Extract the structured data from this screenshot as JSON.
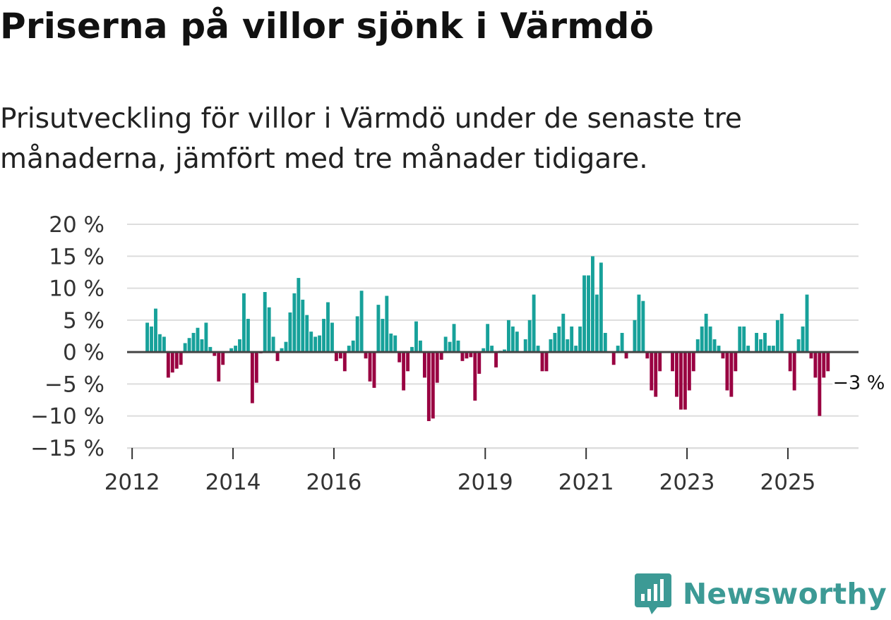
{
  "title": "Priserna på villor sjönk i Värmdö",
  "subtitle": "Prisutveckling för villor i Värmdö under de senaste tre månaderna, jämfört med tre månader tidigare.",
  "brand": {
    "name": "Newsworthy",
    "logo_icon": "bar-chart-speech-bubble-icon"
  },
  "colors": {
    "positive": "#17a19a",
    "negative": "#990041",
    "grid": "#dddddd",
    "zero_line": "#444444",
    "brand": "#3c9a95"
  },
  "chart_data": {
    "type": "bar",
    "title": "Priserna på villor sjönk i Värmdö",
    "ylabel": "",
    "xlabel": "",
    "ylim": [
      -15,
      20
    ],
    "xlim": [
      2011.9,
      2026.4
    ],
    "y_ticks": [
      20,
      15,
      10,
      5,
      0,
      -5,
      -10,
      -15
    ],
    "y_tick_labels": [
      "20 %",
      "15 %",
      "10 %",
      "5 %",
      "0 %",
      "−5 %",
      "−10 %",
      "−15 %"
    ],
    "x_ticks": [
      2012,
      2014,
      2016,
      2019,
      2021,
      2023,
      2025
    ],
    "x_tick_labels": [
      "2012",
      "2014",
      "2016",
      "2019",
      "2021",
      "2023",
      "2025"
    ],
    "start_year": 2012.3,
    "step_years": 0.0833,
    "values": [
      4.6,
      4.0,
      6.8,
      2.8,
      2.4,
      -4.0,
      -3.2,
      -2.6,
      -2.0,
      1.4,
      2.2,
      3.0,
      3.8,
      2.0,
      4.6,
      0.8,
      -0.6,
      -4.6,
      -2.0,
      0,
      0.6,
      1.0,
      2.0,
      9.2,
      5.2,
      -8.0,
      -4.8,
      -0.2,
      9.4,
      7.0,
      2.4,
      -1.4,
      0.6,
      1.6,
      6.2,
      9.2,
      11.6,
      8.2,
      5.8,
      3.2,
      2.4,
      2.6,
      5.2,
      7.8,
      4.6,
      -1.4,
      -1.0,
      -3.0,
      1.0,
      1.8,
      5.6,
      9.6,
      -1.0,
      -4.6,
      -5.6,
      7.4,
      5.2,
      8.8,
      2.9,
      2.6,
      -1.6,
      -6.0,
      -3.0,
      0.8,
      4.8,
      1.8,
      -4.0,
      -10.8,
      -10.4,
      -4.8,
      -1.2,
      2.4,
      1.6,
      4.4,
      1.8,
      -1.4,
      -1.0,
      -0.8,
      -7.6,
      -3.4,
      0.6,
      4.4,
      1.0,
      -2.4,
      0.2,
      0.4,
      5.0,
      4.0,
      3.2,
      0,
      2.0,
      5.0,
      9.0,
      1.0,
      -3.0,
      -3.0,
      2.0,
      3.0,
      4.0,
      6.0,
      2.0,
      4.0,
      1.0,
      4.0,
      12.0,
      12.0,
      15.0,
      9.0,
      14.0,
      3.0,
      0,
      -2.0,
      1.0,
      3.0,
      -1.0,
      0,
      5.0,
      9.0,
      8.0,
      -1.0,
      -6.0,
      -7.0,
      -3.0,
      0,
      0,
      -3.0,
      -7.0,
      -9.0,
      -9.0,
      -6.0,
      -3.0,
      2.0,
      4.0,
      6.0,
      4.0,
      2.0,
      1.0,
      -1.0,
      -6.0,
      -7.0,
      -3.0,
      4.0,
      4.0,
      1.0,
      0,
      3.0,
      2.0,
      3.0,
      1.0,
      1.0,
      5.0,
      6.0,
      0,
      -3.0,
      -6.0,
      2.0,
      4.0,
      9.0,
      -1.0,
      -4.0,
      -10.0,
      -4.0,
      -3.0
    ],
    "annotation": {
      "text": "−3 %",
      "series_index": 168
    }
  }
}
